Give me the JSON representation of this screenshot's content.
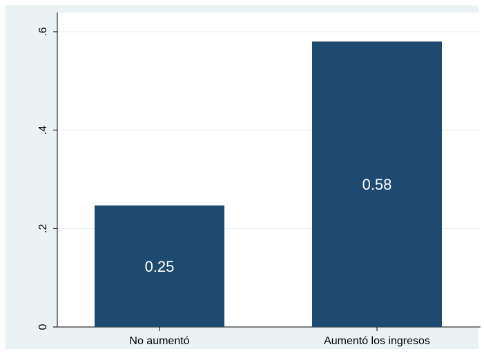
{
  "chart_data": {
    "type": "bar",
    "categories": [
      "No aumentó",
      "Aumentó los ingresos"
    ],
    "values": [
      0.247,
      0.58
    ],
    "data_labels": [
      "0.25",
      "0.58"
    ],
    "ylim": [
      0,
      0.6
    ],
    "yticks": [
      0,
      0.2,
      0.4,
      0.6
    ],
    "ytick_labels": [
      "0",
      ".2",
      ".4",
      ".6"
    ],
    "xlabel": "",
    "ylabel": "",
    "title": "",
    "grid": true,
    "colors": {
      "bar": "#1f4a70",
      "plot_background": "#ffffff",
      "outer_background": "#eaf2f3",
      "grid": "#e8eef0",
      "axis": "#000000",
      "data_label": "#ffffff"
    }
  }
}
